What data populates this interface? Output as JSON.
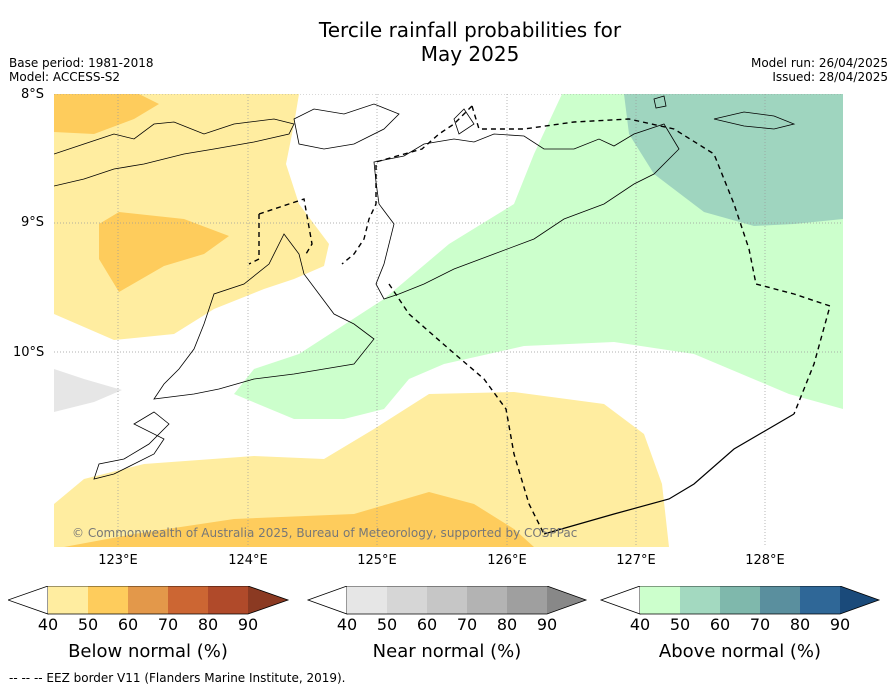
{
  "title": {
    "line1": "Tercile rainfall probabilities for",
    "line2": "May 2025"
  },
  "meta_left": {
    "base_period": "Base period: 1981-2018",
    "model": "Model: ACCESS-S2"
  },
  "meta_right": {
    "model_run": "Model run: 26/04/2025",
    "issued": "Issued: 28/04/2025"
  },
  "map": {
    "lat_labels": [
      "8°S",
      "9°S",
      "10°S"
    ],
    "lon_labels": [
      "123°E",
      "124°E",
      "125°E",
      "126°E",
      "127°E",
      "128°E"
    ],
    "copyright": "© Commonwealth of Australia 2025, Bureau of Meteorology, supported by COSPPac",
    "colors": {
      "below_40_50": "#ffeda0",
      "below_50_60": "#fecc5c",
      "below_60_70": "#e3984a",
      "near_40_50": "#e6e6e6",
      "above_40_50": "#ccffcc",
      "above_50_60": "#9fd5bf"
    }
  },
  "colorbars": [
    {
      "label": "Below normal (%)",
      "ticks": [
        "40",
        "50",
        "60",
        "70",
        "80",
        "90"
      ],
      "colors": [
        "#ffeda0",
        "#fecc5c",
        "#e3984a",
        "#cc6633",
        "#b04a2a",
        "#8b3a22"
      ]
    },
    {
      "label": "Near normal (%)",
      "ticks": [
        "40",
        "50",
        "60",
        "70",
        "80",
        "90"
      ],
      "colors": [
        "#e6e6e6",
        "#d6d6d6",
        "#c6c6c6",
        "#b3b3b3",
        "#9f9f9f",
        "#888888"
      ]
    },
    {
      "label": "Above normal (%)",
      "ticks": [
        "40",
        "50",
        "60",
        "70",
        "80",
        "90"
      ],
      "colors": [
        "#ccffcc",
        "#a3d9c0",
        "#7fb8ac",
        "#5a8f9e",
        "#2f6797",
        "#1a4a7a"
      ]
    }
  ],
  "footer": "--  --  -- EEZ border V11 (Flanders Marine Institute, 2019)."
}
